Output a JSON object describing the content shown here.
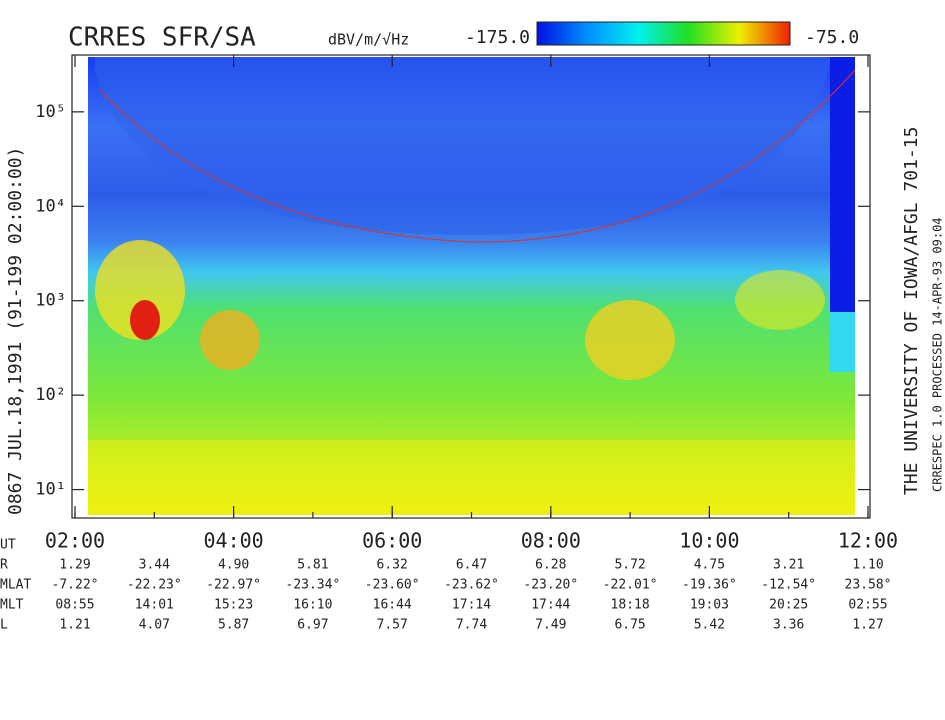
{
  "chart_data": {
    "type": "spectrogram",
    "title": "CRRES SFR/SA",
    "colorbar_label": "dBV/m/√Hz",
    "clim": [
      {
        "value": -175,
        "label": "-175.0"
      },
      {
        "value": -75,
        "label": "-75.0"
      }
    ],
    "ylabel": "0867   JUL.18,1991   (91-199 02:00:00)",
    "credit": "THE UNIVERSITY OF IOWA/AFGL 701-15",
    "processing": "CRRESPEC 1.0   PROCESSED 14-APR-93  09:04",
    "log_y": true,
    "xlim": [
      2,
      12
    ],
    "xticks": [
      {
        "value": 2,
        "label": "02:00"
      },
      {
        "value": 4,
        "label": "04:00"
      },
      {
        "value": 6,
        "label": "06:00"
      },
      {
        "value": 8,
        "label": "08:00"
      },
      {
        "value": 10,
        "label": "10:00"
      },
      {
        "value": 12,
        "label": "12:00"
      }
    ],
    "ylim": [
      5,
      400000
    ],
    "yticks": [
      {
        "value": 10,
        "label": "10¹"
      },
      {
        "value": 100,
        "label": "10²"
      },
      {
        "value": 1000,
        "label": "10³"
      },
      {
        "value": 10000,
        "label": "10⁴"
      },
      {
        "value": 100000,
        "label": "10⁵"
      }
    ],
    "ephemeris": {
      "x": [
        2,
        3,
        4,
        5,
        6,
        7,
        8,
        9,
        10,
        11,
        12
      ],
      "time_label": "UT",
      "rows": [
        {
          "name": "R",
          "values": [
            "1.29",
            "3.44",
            "4.90",
            "5.81",
            "6.32",
            "6.47",
            "6.28",
            "5.72",
            "4.75",
            "3.21",
            "1.10"
          ]
        },
        {
          "name": "MLAT",
          "values": [
            "-7.22°",
            "-22.23°",
            "-22.97°",
            "-23.34°",
            "-23.60°",
            "-23.62°",
            "-23.20°",
            "-22.01°",
            "-19.36°",
            "-12.54°",
            "23.58°"
          ]
        },
        {
          "name": "MLT",
          "values": [
            "08:55",
            "14:01",
            "15:23",
            "16:10",
            "16:44",
            "17:14",
            "17:44",
            "18:18",
            "19:03",
            "20:25",
            "02:55"
          ]
        },
        {
          "name": "L",
          "values": [
            "1.21",
            "4.07",
            "5.87",
            "6.97",
            "7.57",
            "7.74",
            "7.49",
            "6.75",
            "5.42",
            "3.36",
            "1.27"
          ]
        }
      ]
    }
  }
}
